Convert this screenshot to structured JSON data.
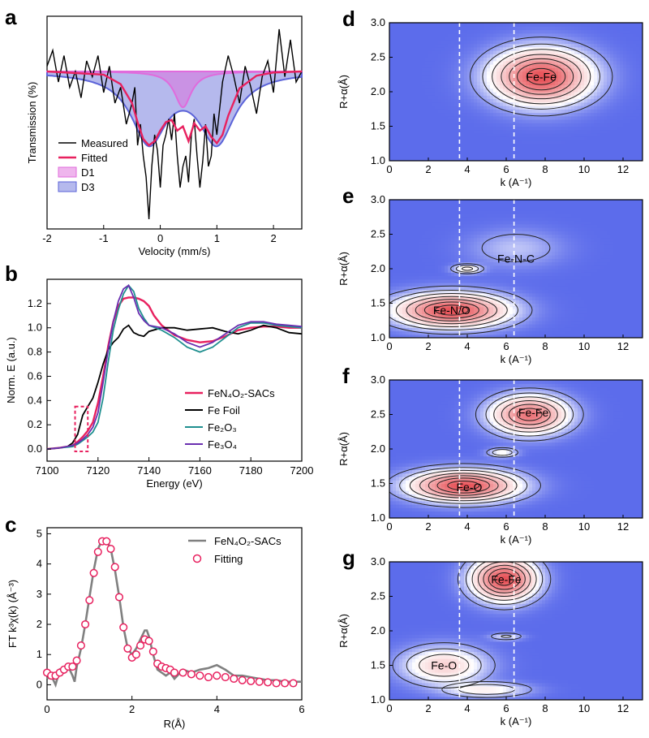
{
  "chart_data": [
    {
      "panel": "a",
      "type": "line",
      "xlabel": "Velocity (mm/s)",
      "ylabel": "Transmission (%)",
      "xlim": [
        -2,
        2.5
      ],
      "xticks": [
        -2,
        -1,
        0,
        1,
        2
      ],
      "series": [
        {
          "name": "Measured",
          "color": "#000000",
          "x": [
            -2.0,
            -1.9,
            -1.8,
            -1.7,
            -1.6,
            -1.5,
            -1.4,
            -1.3,
            -1.2,
            -1.1,
            -1.0,
            -0.9,
            -0.8,
            -0.7,
            -0.6,
            -0.5,
            -0.45,
            -0.4,
            -0.35,
            -0.3,
            -0.25,
            -0.2,
            -0.15,
            -0.1,
            -0.05,
            0.0,
            0.05,
            0.1,
            0.15,
            0.2,
            0.25,
            0.3,
            0.35,
            0.4,
            0.45,
            0.5,
            0.55,
            0.6,
            0.65,
            0.7,
            0.75,
            0.8,
            0.85,
            0.9,
            0.95,
            1.0,
            1.05,
            1.1,
            1.2,
            1.3,
            1.4,
            1.5,
            1.6,
            1.7,
            1.8,
            1.9,
            2.0,
            2.1,
            2.2,
            2.3,
            2.4,
            2.5
          ],
          "y": [
            0.5,
            2.0,
            -1.0,
            1.5,
            -1.5,
            0.0,
            -2.5,
            1.0,
            -0.5,
            1.5,
            -2.0,
            0.5,
            -3.0,
            -1.5,
            -5.0,
            -3.0,
            -1.5,
            -7.0,
            -5.0,
            -8.0,
            -10.0,
            -14.0,
            -9.0,
            -6.0,
            -7.5,
            -11.0,
            -7.0,
            -6.0,
            -4.5,
            -6.5,
            -4.0,
            -8.0,
            -11.0,
            -9.0,
            -8.0,
            -10.5,
            -6.0,
            -4.5,
            -8.0,
            -11.0,
            -8.5,
            -5.0,
            -9.0,
            -8.0,
            -4.0,
            -6.0,
            -3.5,
            -1.0,
            1.5,
            -0.5,
            -3.0,
            0.5,
            -1.5,
            -4.0,
            -0.5,
            1.0,
            -2.0,
            4.0,
            -0.5,
            3.0,
            -1.0,
            0.0
          ]
        },
        {
          "name": "Fitted",
          "color": "#e8215f",
          "x": [
            -2.0,
            -1.0,
            -0.7,
            -0.5,
            -0.4,
            -0.3,
            -0.2,
            -0.1,
            0.0,
            0.1,
            0.2,
            0.3,
            0.4,
            0.5,
            0.6,
            0.7,
            0.8,
            0.9,
            1.0,
            1.1,
            1.2,
            1.4,
            1.7,
            2.0,
            2.5
          ],
          "y": [
            0.0,
            -0.3,
            -1.2,
            -3.0,
            -4.8,
            -6.4,
            -7.0,
            -6.6,
            -5.6,
            -4.8,
            -4.6,
            -5.6,
            -5.2,
            -6.6,
            -4.9,
            -5.6,
            -5.2,
            -6.2,
            -6.8,
            -6.0,
            -4.2,
            -1.6,
            -0.4,
            -0.1,
            0.0
          ]
        }
      ],
      "components": [
        {
          "name": "D1",
          "color": "#e06bdc",
          "center": 0.4,
          "depth": 3.4,
          "halfwidth": 0.18
        },
        {
          "name": "D3",
          "color": "#5b63d8",
          "centers": [
            -0.2,
            1.0
          ],
          "depth": 6.5,
          "halfwidth": 0.38
        }
      ],
      "legend": [
        "Measured",
        "Fitted",
        "D1",
        "D3"
      ],
      "legend_position": "bottom-left"
    },
    {
      "panel": "b",
      "type": "line",
      "xlabel": "Energy (eV)",
      "ylabel": "Norm. E (a.u.)",
      "xlim": [
        7100,
        7200
      ],
      "ylim": [
        -0.1,
        1.4
      ],
      "xticks": [
        7100,
        7120,
        7140,
        7160,
        7180,
        7200
      ],
      "yticks": [
        0.0,
        0.2,
        0.4,
        0.6,
        0.8,
        1.0,
        1.2
      ],
      "series": [
        {
          "name": "FeN₄O₂-SACs",
          "color": "#e8215f",
          "x": [
            7100,
            7105,
            7108,
            7110,
            7112,
            7114,
            7116,
            7118,
            7120,
            7122,
            7124,
            7126,
            7128,
            7130,
            7132,
            7134,
            7136,
            7138,
            7140,
            7142,
            7145,
            7150,
            7155,
            7160,
            7165,
            7170,
            7175,
            7180,
            7185,
            7190,
            7195,
            7200
          ],
          "y": [
            0.0,
            0.01,
            0.02,
            0.03,
            0.06,
            0.1,
            0.15,
            0.22,
            0.38,
            0.6,
            0.85,
            1.05,
            1.18,
            1.24,
            1.25,
            1.25,
            1.24,
            1.22,
            1.18,
            1.1,
            1.02,
            0.94,
            0.9,
            0.88,
            0.89,
            0.93,
            0.98,
            1.0,
            1.01,
            1.01,
            1.0,
            1.0
          ]
        },
        {
          "name": "Fe Foil",
          "color": "#000000",
          "x": [
            7100,
            7105,
            7108,
            7110,
            7112,
            7113,
            7114,
            7116,
            7118,
            7120,
            7122,
            7124,
            7126,
            7128,
            7130,
            7132,
            7134,
            7136,
            7138,
            7140,
            7145,
            7150,
            7155,
            7160,
            7165,
            7170,
            7175,
            7180,
            7185,
            7190,
            7195,
            7200
          ],
          "y": [
            0.0,
            0.01,
            0.02,
            0.05,
            0.12,
            0.2,
            0.28,
            0.35,
            0.42,
            0.55,
            0.7,
            0.82,
            0.88,
            0.92,
            0.99,
            1.02,
            0.96,
            0.94,
            0.93,
            0.97,
            1.0,
            1.0,
            0.98,
            0.99,
            1.0,
            0.97,
            0.95,
            0.98,
            1.02,
            1.0,
            0.96,
            0.95
          ]
        },
        {
          "name": "Fe₂O₃",
          "color": "#1f8f8f",
          "x": [
            7100,
            7105,
            7110,
            7112,
            7114,
            7116,
            7118,
            7120,
            7122,
            7124,
            7126,
            7128,
            7130,
            7132,
            7134,
            7136,
            7138,
            7140,
            7145,
            7150,
            7155,
            7160,
            7165,
            7170,
            7175,
            7180,
            7185,
            7190,
            7195,
            7200
          ],
          "y": [
            0.0,
            0.01,
            0.02,
            0.04,
            0.07,
            0.1,
            0.14,
            0.22,
            0.42,
            0.72,
            0.98,
            1.15,
            1.28,
            1.35,
            1.3,
            1.16,
            1.08,
            1.02,
            0.98,
            0.92,
            0.84,
            0.8,
            0.84,
            0.92,
            1.0,
            1.04,
            1.04,
            1.02,
            1.01,
            1.0
          ]
        },
        {
          "name": "Fe₃O₄",
          "color": "#6a2fb0",
          "x": [
            7100,
            7105,
            7110,
            7112,
            7114,
            7116,
            7118,
            7120,
            7122,
            7124,
            7126,
            7128,
            7130,
            7132,
            7134,
            7136,
            7138,
            7140,
            7145,
            7150,
            7155,
            7160,
            7165,
            7170,
            7175,
            7180,
            7185,
            7190,
            7195,
            7200
          ],
          "y": [
            0.0,
            0.01,
            0.03,
            0.05,
            0.08,
            0.12,
            0.18,
            0.3,
            0.55,
            0.82,
            1.05,
            1.22,
            1.32,
            1.35,
            1.25,
            1.12,
            1.06,
            1.02,
            1.0,
            0.95,
            0.88,
            0.84,
            0.88,
            0.95,
            1.02,
            1.05,
            1.05,
            1.03,
            1.02,
            1.01
          ]
        }
      ],
      "legend": [
        "FeN₄O₂-SACs",
        "Fe Foil",
        "Fe₂O₃",
        "Fe₃O₄"
      ],
      "legend_position": "bottom-right",
      "highlight_box_x": [
        7111,
        7116
      ],
      "highlight_box_y": [
        -0.02,
        0.35
      ]
    },
    {
      "panel": "c",
      "type": "line",
      "xlabel": "R(Å)",
      "ylabel": "FT k³χ(k) (Å⁻³)",
      "xlim": [
        0,
        6
      ],
      "ylim": [
        -0.5,
        5.2
      ],
      "xticks": [
        0,
        2,
        4,
        6
      ],
      "yticks": [
        0,
        1,
        2,
        3,
        4,
        5
      ],
      "series": [
        {
          "name": "FeN₄O₂-SACs",
          "color": "#808080",
          "x": [
            0.0,
            0.1,
            0.2,
            0.3,
            0.4,
            0.5,
            0.6,
            0.65,
            0.7,
            0.8,
            0.9,
            1.0,
            1.1,
            1.2,
            1.3,
            1.4,
            1.5,
            1.6,
            1.7,
            1.8,
            1.9,
            2.0,
            2.1,
            2.2,
            2.3,
            2.35,
            2.4,
            2.5,
            2.6,
            2.7,
            2.8,
            2.9,
            3.0,
            3.2,
            3.4,
            3.6,
            3.8,
            4.0,
            4.2,
            4.4,
            4.6,
            4.8,
            5.0,
            5.2,
            5.4,
            5.6,
            5.8,
            6.0
          ],
          "y": [
            0.2,
            0.3,
            0.0,
            0.5,
            0.4,
            0.6,
            0.3,
            0.1,
            0.6,
            1.2,
            2.0,
            2.9,
            3.8,
            4.5,
            4.8,
            4.8,
            4.5,
            3.8,
            2.9,
            1.9,
            1.2,
            1.0,
            1.2,
            1.5,
            1.8,
            1.8,
            1.6,
            1.0,
            0.5,
            0.4,
            0.3,
            0.4,
            0.2,
            0.5,
            0.4,
            0.5,
            0.55,
            0.65,
            0.5,
            0.3,
            0.3,
            0.25,
            0.2,
            0.15,
            0.15,
            0.1,
            0.1,
            0.1
          ]
        },
        {
          "name": "Fitting",
          "color": "#e8215f",
          "x": [
            0.0,
            0.1,
            0.2,
            0.3,
            0.4,
            0.5,
            0.6,
            0.7,
            0.8,
            0.9,
            1.0,
            1.1,
            1.2,
            1.3,
            1.4,
            1.5,
            1.6,
            1.7,
            1.8,
            1.9,
            2.0,
            2.1,
            2.2,
            2.3,
            2.4,
            2.5,
            2.6,
            2.7,
            2.8,
            2.9,
            3.0,
            3.2,
            3.4,
            3.6,
            3.8,
            4.0,
            4.2,
            4.4,
            4.6,
            4.8,
            5.0,
            5.2,
            5.4,
            5.6,
            5.8
          ],
          "y": [
            0.4,
            0.3,
            0.3,
            0.4,
            0.5,
            0.6,
            0.6,
            0.8,
            1.3,
            2.0,
            2.8,
            3.7,
            4.4,
            4.75,
            4.75,
            4.5,
            3.9,
            2.9,
            1.9,
            1.2,
            0.9,
            1.0,
            1.3,
            1.5,
            1.45,
            1.1,
            0.7,
            0.6,
            0.55,
            0.5,
            0.4,
            0.4,
            0.35,
            0.3,
            0.25,
            0.3,
            0.25,
            0.2,
            0.15,
            0.12,
            0.1,
            0.08,
            0.05,
            0.05,
            0.05
          ]
        }
      ],
      "legend": [
        "FeN₄O₂-SACs",
        "Fitting"
      ],
      "legend_position": "top-right"
    },
    {
      "panel": "d",
      "type": "heatmap",
      "xlabel": "k (A⁻¹)",
      "ylabel": "R+α(Å)",
      "xlim": [
        0,
        13
      ],
      "ylim": [
        1.0,
        3.0
      ],
      "xticks": [
        0,
        2,
        4,
        6,
        8,
        10,
        12
      ],
      "yticks": [
        1.0,
        1.5,
        2.0,
        2.5,
        3.0
      ],
      "dashed_k": [
        3.6,
        6.4
      ],
      "peaks": [
        {
          "label": "Fe-Fe",
          "k": 7.8,
          "R": 2.22,
          "sk": 2.3,
          "sR": 0.36,
          "amp": 1.0
        }
      ],
      "labels": [
        "Fe-Fe"
      ]
    },
    {
      "panel": "e",
      "type": "heatmap",
      "xlabel": "k (A⁻¹)",
      "ylabel": "R+α(Å)",
      "xlim": [
        0,
        13
      ],
      "ylim": [
        1.0,
        3.0
      ],
      "xticks": [
        0,
        2,
        4,
        6,
        8,
        10,
        12
      ],
      "yticks": [
        1.0,
        1.5,
        2.0,
        2.5,
        3.0
      ],
      "dashed_k": [
        3.6,
        6.4
      ],
      "peaks": [
        {
          "label": "Fe-N/O",
          "k": 3.2,
          "R": 1.4,
          "sk": 2.6,
          "sR": 0.22,
          "amp": 1.0
        },
        {
          "label": "",
          "k": 4.0,
          "R": 2.0,
          "sk": 0.7,
          "sR": 0.06,
          "amp": 0.35
        },
        {
          "label": "",
          "k": 6.5,
          "R": 2.3,
          "sk": 2.2,
          "sR": 0.25,
          "amp": 0.15
        }
      ],
      "labels": [
        "Fe-N-C",
        "Fe-N/O"
      ]
    },
    {
      "panel": "f",
      "type": "heatmap",
      "xlabel": "k (A⁻¹)",
      "ylabel": "R+α(Å)",
      "xlim": [
        0,
        13
      ],
      "ylim": [
        1.0,
        3.0
      ],
      "xticks": [
        0,
        2,
        4,
        6,
        8,
        10,
        12
      ],
      "yticks": [
        1.0,
        1.5,
        2.0,
        2.5,
        3.0
      ],
      "dashed_k": [
        3.6,
        6.4
      ],
      "peaks": [
        {
          "label": "Fe-O",
          "k": 3.8,
          "R": 1.47,
          "sk": 2.5,
          "sR": 0.2,
          "amp": 1.0
        },
        {
          "label": "Fe-Fe",
          "k": 7.2,
          "R": 2.5,
          "sk": 1.8,
          "sR": 0.25,
          "amp": 0.85
        },
        {
          "label": "",
          "k": 5.8,
          "R": 1.95,
          "sk": 0.7,
          "sR": 0.06,
          "amp": 0.3
        }
      ],
      "labels": [
        "Fe-Fe",
        "Fe-O"
      ]
    },
    {
      "panel": "g",
      "type": "heatmap",
      "xlabel": "k (A⁻¹)",
      "ylabel": "R+α(Å)",
      "xlim": [
        0,
        13
      ],
      "ylim": [
        1.0,
        3.0
      ],
      "xticks": [
        0,
        2,
        4,
        6,
        8,
        10,
        12
      ],
      "yticks": [
        1.0,
        1.5,
        2.0,
        2.5,
        3.0
      ],
      "dashed_k": [
        3.6,
        6.4
      ],
      "peaks": [
        {
          "label": "Fe-Fe",
          "k": 5.9,
          "R": 2.75,
          "sk": 1.5,
          "sR": 0.28,
          "amp": 1.0
        },
        {
          "label": "Fe-O",
          "k": 2.8,
          "R": 1.5,
          "sk": 2.0,
          "sR": 0.25,
          "amp": 0.45
        },
        {
          "label": "",
          "k": 5.0,
          "R": 1.15,
          "sk": 2.0,
          "sR": 0.1,
          "amp": 0.3
        },
        {
          "label": "",
          "k": 6.0,
          "R": 1.92,
          "sk": 0.8,
          "sR": 0.05,
          "amp": 0.2
        }
      ],
      "labels": [
        "Fe-Fe",
        "Fe-O"
      ]
    }
  ]
}
